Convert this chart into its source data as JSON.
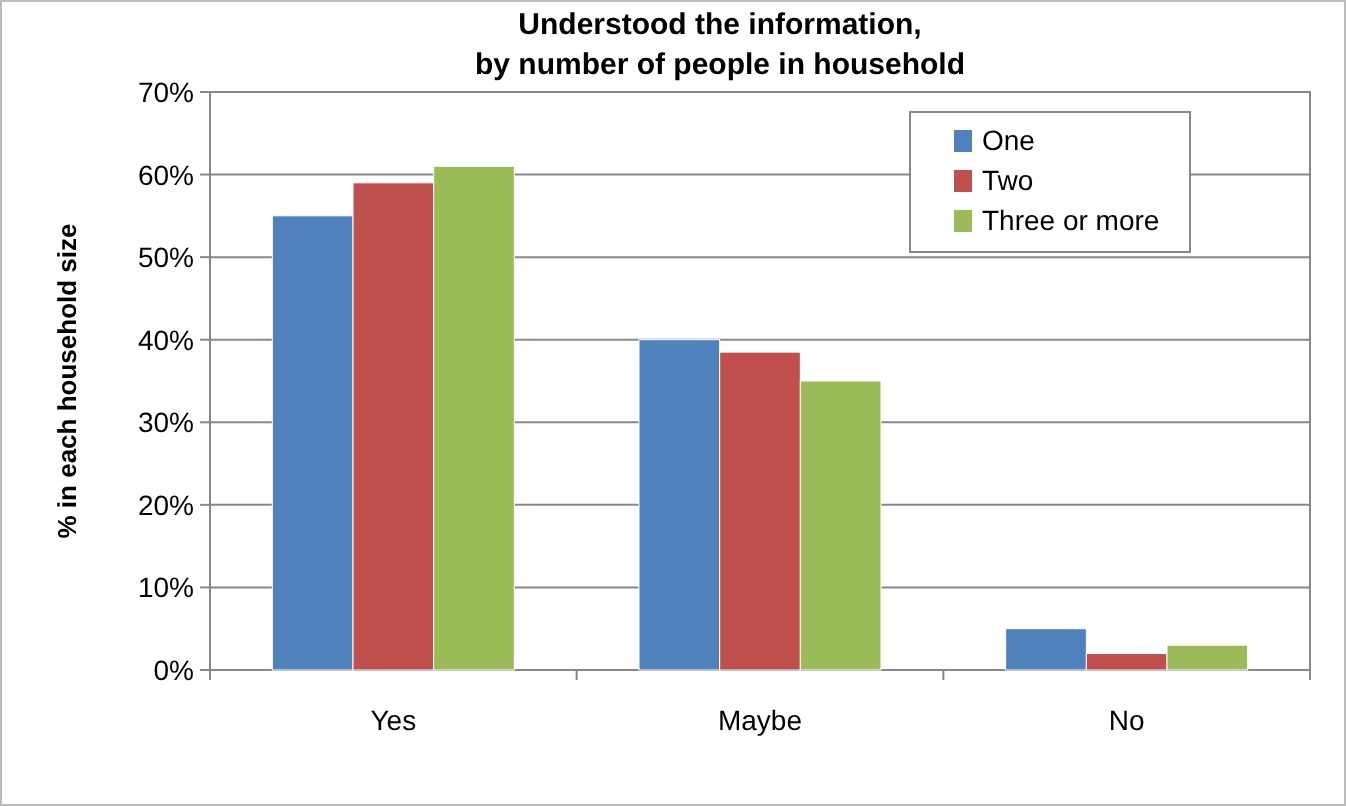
{
  "chart_data": {
    "type": "bar",
    "title": "Understood the information,\nby number of people in household",
    "ylabel": "% in each household size",
    "categories": [
      "Yes",
      "Maybe",
      "No"
    ],
    "series": [
      {
        "name": "One",
        "color": "#4f81bd",
        "values": [
          55,
          40,
          5
        ]
      },
      {
        "name": "Two",
        "color": "#c0504d",
        "values": [
          59,
          38.5,
          2
        ]
      },
      {
        "name": "Three or more",
        "color": "#9bbb59",
        "values": [
          61,
          35,
          3
        ]
      }
    ],
    "ylim": [
      0,
      70
    ],
    "yticks": [
      {
        "value": 0,
        "label": "0%"
      },
      {
        "value": 10,
        "label": "10%"
      },
      {
        "value": 20,
        "label": "20%"
      },
      {
        "value": 30,
        "label": "30%"
      },
      {
        "value": 40,
        "label": "40%"
      },
      {
        "value": 50,
        "label": "50%"
      },
      {
        "value": 60,
        "label": "60%"
      },
      {
        "value": 70,
        "label": "70%"
      }
    ],
    "grid": "y",
    "legend": "top right"
  }
}
